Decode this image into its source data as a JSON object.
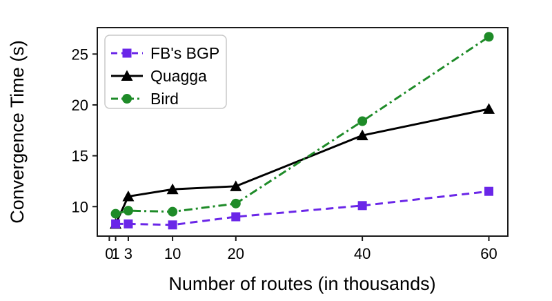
{
  "chart_data": {
    "type": "line",
    "title": "",
    "xlabel": "Number of routes (in thousands)",
    "ylabel": "Convergence Time (s)",
    "x": [
      1,
      3,
      10,
      20,
      40,
      60
    ],
    "series": [
      {
        "name": "FB's BGP",
        "color": "#6a26e8",
        "line_style": "dashed",
        "marker": "square",
        "values": [
          8.3,
          8.3,
          8.2,
          9.0,
          10.1,
          11.5
        ]
      },
      {
        "name": "Quagga",
        "color": "#000000",
        "line_style": "solid",
        "marker": "triangle",
        "values": [
          8.3,
          11.0,
          11.7,
          12.0,
          17.0,
          19.6
        ]
      },
      {
        "name": "Bird",
        "color": "#1e8b28",
        "line_style": "dash-dot",
        "marker": "circle",
        "values": [
          9.3,
          9.6,
          9.5,
          10.3,
          18.4,
          26.7
        ]
      }
    ],
    "xticks": [
      0,
      1,
      3,
      10,
      20,
      40,
      60
    ],
    "yticks": [
      10,
      15,
      20,
      25
    ],
    "xlim": [
      -1.9,
      63
    ],
    "ylim": [
      7.1,
      27.6
    ],
    "grid": false,
    "legend_position": "upper-left",
    "axis_color": "#1a1a1a",
    "background_color": "#ffffff"
  }
}
